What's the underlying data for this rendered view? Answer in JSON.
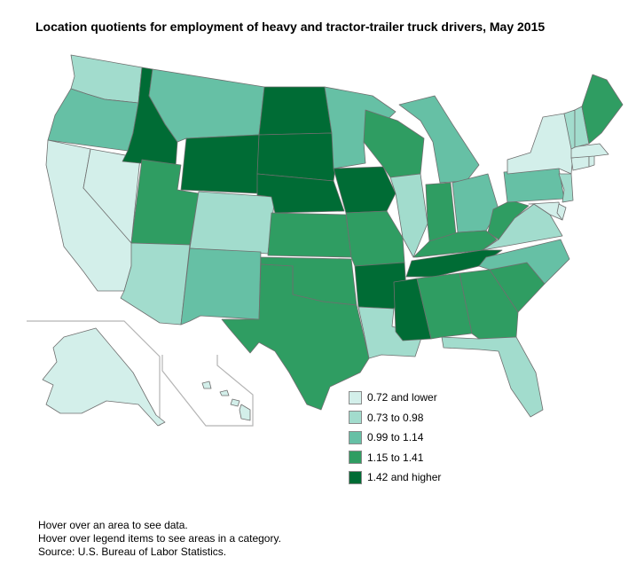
{
  "title": "Location quotients for employment of heavy and tractor-trailer truck drivers, May 2015",
  "legend": [
    {
      "label": "0.72 and lower",
      "color": "#d3efea"
    },
    {
      "label": "0.73 to 0.98",
      "color": "#a2dccd"
    },
    {
      "label": "0.99 to 1.14",
      "color": "#66c0a5"
    },
    {
      "label": "1.15 to 1.41",
      "color": "#2f9d62"
    },
    {
      "label": "1.42 and higher",
      "color": "#006c35"
    }
  ],
  "states": [
    {
      "name": "Washington",
      "category": 1
    },
    {
      "name": "Oregon",
      "category": 2
    },
    {
      "name": "California",
      "category": 0
    },
    {
      "name": "Nevada",
      "category": 0
    },
    {
      "name": "Idaho",
      "category": 4
    },
    {
      "name": "Montana",
      "category": 2
    },
    {
      "name": "Wyoming",
      "category": 4
    },
    {
      "name": "Utah",
      "category": 3
    },
    {
      "name": "Arizona",
      "category": 1
    },
    {
      "name": "Colorado",
      "category": 1
    },
    {
      "name": "New Mexico",
      "category": 2
    },
    {
      "name": "North Dakota",
      "category": 4
    },
    {
      "name": "South Dakota",
      "category": 4
    },
    {
      "name": "Nebraska",
      "category": 4
    },
    {
      "name": "Kansas",
      "category": 3
    },
    {
      "name": "Oklahoma",
      "category": 3
    },
    {
      "name": "Texas",
      "category": 3
    },
    {
      "name": "Minnesota",
      "category": 2
    },
    {
      "name": "Iowa",
      "category": 4
    },
    {
      "name": "Missouri",
      "category": 3
    },
    {
      "name": "Arkansas",
      "category": 4
    },
    {
      "name": "Louisiana",
      "category": 1
    },
    {
      "name": "Wisconsin",
      "category": 3
    },
    {
      "name": "Illinois",
      "category": 1
    },
    {
      "name": "Michigan",
      "category": 2
    },
    {
      "name": "Indiana",
      "category": 3
    },
    {
      "name": "Ohio",
      "category": 2
    },
    {
      "name": "Kentucky",
      "category": 3
    },
    {
      "name": "Tennessee",
      "category": 4
    },
    {
      "name": "Mississippi",
      "category": 4
    },
    {
      "name": "Alabama",
      "category": 3
    },
    {
      "name": "Georgia",
      "category": 3
    },
    {
      "name": "Florida",
      "category": 1
    },
    {
      "name": "South Carolina",
      "category": 3
    },
    {
      "name": "North Carolina",
      "category": 2
    },
    {
      "name": "Virginia",
      "category": 1
    },
    {
      "name": "West Virginia",
      "category": 3
    },
    {
      "name": "Pennsylvania",
      "category": 2
    },
    {
      "name": "New York",
      "category": 0
    },
    {
      "name": "Maryland",
      "category": 0
    },
    {
      "name": "Delaware",
      "category": 0
    },
    {
      "name": "New Jersey",
      "category": 1
    },
    {
      "name": "Connecticut",
      "category": 0
    },
    {
      "name": "Rhode Island",
      "category": 0
    },
    {
      "name": "Massachusetts",
      "category": 0
    },
    {
      "name": "Vermont",
      "category": 1
    },
    {
      "name": "New Hampshire",
      "category": 1
    },
    {
      "name": "Maine",
      "category": 3
    },
    {
      "name": "Alaska",
      "category": 0
    },
    {
      "name": "Hawaii",
      "category": 0
    }
  ],
  "notes": [
    "Hover over an area to see data.",
    "Hover over legend items to see areas in a category.",
    "Source: U.S. Bureau of Labor Statistics."
  ]
}
